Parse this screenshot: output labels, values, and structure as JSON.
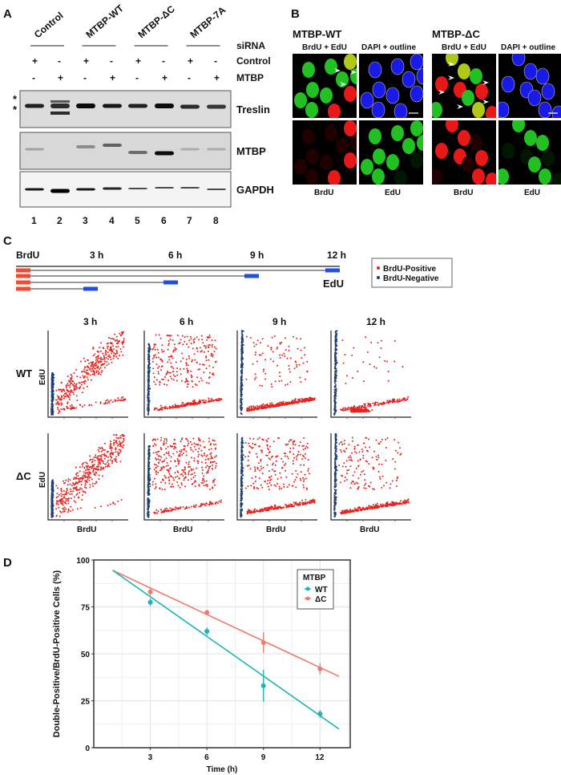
{
  "panel_labels": {
    "a": "A",
    "b": "B",
    "c": "C",
    "d": "D"
  },
  "panel_a": {
    "groups": [
      "Control",
      "MTBP-WT",
      "MTBP-ΔC",
      "MTBP-7A"
    ],
    "row_labels": {
      "sirna": "siRNA",
      "control": "Control",
      "mtbp": "MTBP"
    },
    "control_signs": [
      "+",
      "-",
      "+",
      "-",
      "+",
      "-",
      "+",
      "-"
    ],
    "mtbp_signs": [
      "-",
      "+",
      "-",
      "+",
      "-",
      "+",
      "-",
      "+"
    ],
    "blots": [
      "Treslin",
      "MTBP",
      "GAPDH"
    ],
    "asterisk": "*",
    "lanes": [
      "1",
      "2",
      "3",
      "4",
      "5",
      "6",
      "7",
      "8"
    ]
  },
  "panel_b": {
    "conditions": [
      {
        "title": "MTBP-WT",
        "top_left": "BrdU + EdU",
        "top_right": "DAPI + outline",
        "bottom_left": "BrdU",
        "bottom_right": "EdU"
      },
      {
        "title": "MTBP-ΔC",
        "top_left": "BrdU + EdU",
        "top_right": "DAPI + outline",
        "bottom_left": "BrdU",
        "bottom_right": "EdU"
      }
    ]
  },
  "panel_c": {
    "timeline_labels": [
      "BrdU",
      "3 h",
      "6 h",
      "9 h",
      "12 h"
    ],
    "edu_label": "EdU",
    "legend": [
      {
        "label": "BrdU-Positive",
        "color": "#e8231f"
      },
      {
        "label": "BrdU-Negative",
        "color": "#1f3f6e"
      }
    ],
    "timepoints": [
      "3 h",
      "6 h",
      "9 h",
      "12 h"
    ],
    "rows": [
      "WT",
      "ΔC"
    ],
    "x_axis_label": "BrdU",
    "y_axis_label": "EdU",
    "pulse_colors": {
      "brdu": "#ef4a32",
      "edu": "#1f4fe0"
    }
  },
  "chart_data": {
    "type": "line",
    "xlabel": "Time (h)",
    "ylabel": "Double-Positive/BrdU-Positive Cells (%)",
    "xlim": [
      0,
      13.6
    ],
    "ylim": [
      0,
      100
    ],
    "x_ticks": [
      3,
      6,
      9,
      12
    ],
    "y_ticks": [
      0,
      25,
      50,
      75,
      100
    ],
    "grid": true,
    "legend_title": "MTBP",
    "legend_position": "top-right",
    "x": [
      3,
      6,
      9,
      12
    ],
    "series": [
      {
        "name": "WT",
        "color": "#1bb5b8",
        "values": [
          77.5,
          62,
          33,
          18
        ],
        "errors": [
          2,
          2,
          8.5,
          2
        ],
        "fit": [
          [
            1,
            94.5
          ],
          [
            13,
            10
          ]
        ]
      },
      {
        "name": "ΔC",
        "color": "#ef7b6e",
        "values": [
          83,
          72,
          56,
          42
        ],
        "errors": [
          2,
          1.5,
          5.5,
          3
        ],
        "fit": [
          [
            1,
            94.5
          ],
          [
            13,
            38
          ]
        ]
      }
    ]
  }
}
